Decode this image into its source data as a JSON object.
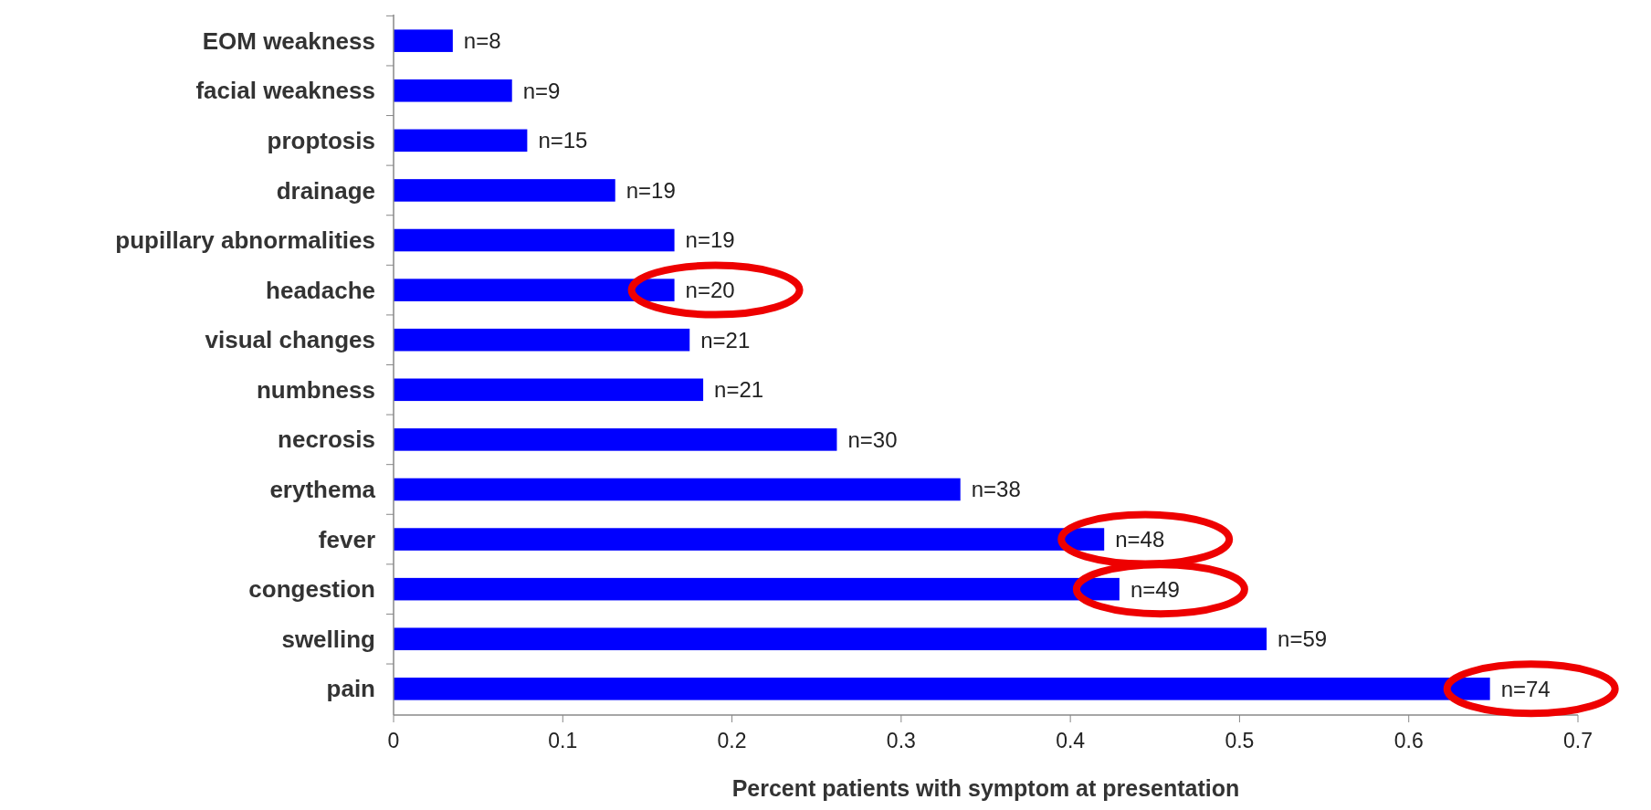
{
  "chart_data": {
    "type": "bar",
    "orientation": "horizontal",
    "xlabel": "Percent patients with symptom at presentation",
    "categories": [
      "EOM weakness",
      "facial weakness",
      "proptosis",
      "drainage",
      "pupillary abnormalities",
      "headache",
      "visual changes",
      "numbness",
      "necrosis",
      "erythema",
      "fever",
      "congestion",
      "swelling",
      "pain"
    ],
    "values": [
      0.035,
      0.07,
      0.079,
      0.131,
      0.166,
      0.166,
      0.175,
      0.183,
      0.262,
      0.335,
      0.42,
      0.429,
      0.516,
      0.648
    ],
    "annotations": [
      {
        "text": "n=8",
        "x": 0.035,
        "y": "EOM weakness"
      },
      {
        "text": "n=9",
        "x": 0.07,
        "y": "facial weakness"
      },
      {
        "text": "n=15",
        "x": 0.079,
        "y": "proptosis"
      },
      {
        "text": "n=19",
        "x": 0.131,
        "y": "drainage"
      },
      {
        "text": "n=19",
        "x": 0.166,
        "y": "pupillary abnormalities"
      },
      {
        "text": "n=20",
        "x": 0.166,
        "y": "headache"
      },
      {
        "text": "n=21",
        "x": 0.175,
        "y": "visual changes"
      },
      {
        "text": "n=21",
        "x": 0.183,
        "y": "numbness"
      },
      {
        "text": "n=30",
        "x": 0.262,
        "y": "necrosis"
      },
      {
        "text": "n=38",
        "x": 0.335,
        "y": "erythema"
      },
      {
        "text": "n=48",
        "x": 0.42,
        "y": "fever"
      },
      {
        "text": "n=49",
        "x": 0.429,
        "y": "congestion"
      },
      {
        "text": "n=59",
        "x": 0.516,
        "y": "swelling"
      },
      {
        "text": "n=74",
        "x": 0.648,
        "y": "pain"
      }
    ],
    "color": "#0000ff",
    "xlim": [
      0,
      0.7
    ],
    "xticks": [
      0,
      0.1,
      0.2,
      0.3,
      0.4,
      0.5,
      0.6,
      0.7
    ],
    "grid": false
  }
}
